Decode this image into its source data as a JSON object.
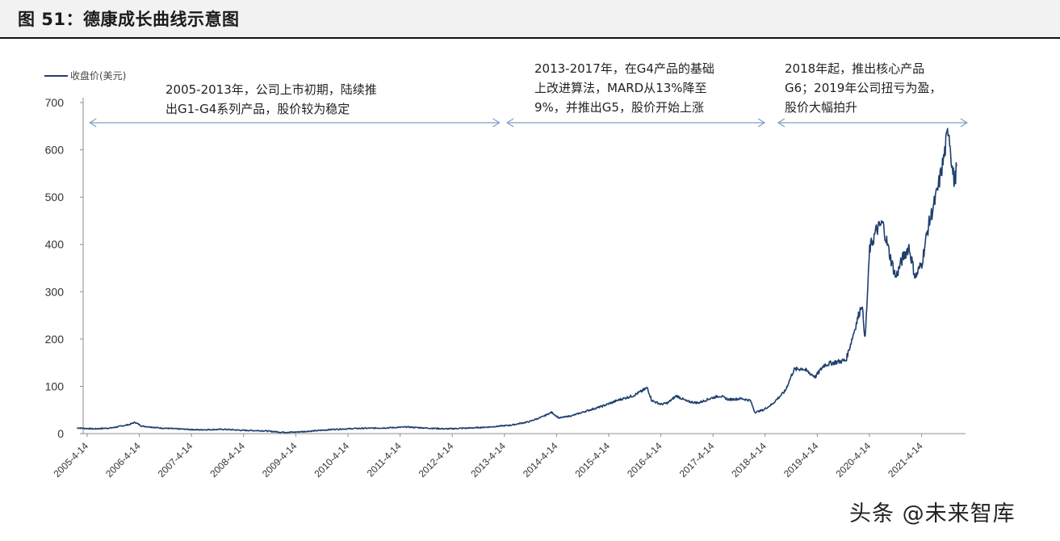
{
  "figure": {
    "title": "图 51：德康成长曲线示意图"
  },
  "chart_data": {
    "type": "line",
    "legend_label": "收盘价(美元)",
    "legend_placement": "top-left",
    "grid": false,
    "ylim": [
      0,
      700
    ],
    "yticks": [
      0,
      100,
      200,
      300,
      400,
      500,
      600,
      700
    ],
    "x_range": [
      "2005-02-01",
      "2021-12-15"
    ],
    "xtick_labels": [
      "2005-4-14",
      "2006-4-14",
      "2007-4-14",
      "2008-4-14",
      "2009-4-14",
      "2010-4-14",
      "2011-4-14",
      "2012-4-14",
      "2013-4-14",
      "2014-4-14",
      "2015-4-14",
      "2016-4-14",
      "2017-4-14",
      "2018-4-14",
      "2019-4-14",
      "2020-4-14",
      "2021-4-14"
    ],
    "line_color": "#1f3f6e",
    "series": [
      {
        "values": [
          [
            "2005-02-01",
            12
          ],
          [
            "2005-06-01",
            10
          ],
          [
            "2005-10-01",
            12
          ],
          [
            "2006-02-01",
            19
          ],
          [
            "2006-03-15",
            24
          ],
          [
            "2006-05-01",
            16
          ],
          [
            "2006-09-01",
            12
          ],
          [
            "2007-01-01",
            10
          ],
          [
            "2007-06-01",
            8
          ],
          [
            "2007-12-01",
            9
          ],
          [
            "2008-04-01",
            7
          ],
          [
            "2008-09-01",
            6
          ],
          [
            "2009-01-01",
            3
          ],
          [
            "2009-04-01",
            3
          ],
          [
            "2009-09-01",
            6
          ],
          [
            "2010-01-01",
            9
          ],
          [
            "2010-07-01",
            11
          ],
          [
            "2011-01-01",
            12
          ],
          [
            "2011-06-01",
            14
          ],
          [
            "2011-10-01",
            12
          ],
          [
            "2012-03-01",
            10
          ],
          [
            "2012-09-01",
            12
          ],
          [
            "2013-01-01",
            14
          ],
          [
            "2013-06-01",
            18
          ],
          [
            "2013-10-01",
            25
          ],
          [
            "2014-01-01",
            35
          ],
          [
            "2014-03-10",
            45
          ],
          [
            "2014-05-01",
            33
          ],
          [
            "2014-08-01",
            38
          ],
          [
            "2014-11-01",
            47
          ],
          [
            "2015-03-01",
            58
          ],
          [
            "2015-07-01",
            72
          ],
          [
            "2015-10-01",
            80
          ],
          [
            "2015-12-15",
            92
          ],
          [
            "2016-01-10",
            97
          ],
          [
            "2016-02-10",
            70
          ],
          [
            "2016-04-15",
            62
          ],
          [
            "2016-06-01",
            65
          ],
          [
            "2016-08-01",
            80
          ],
          [
            "2016-10-15",
            68
          ],
          [
            "2017-01-01",
            65
          ],
          [
            "2017-04-01",
            75
          ],
          [
            "2017-06-01",
            80
          ],
          [
            "2017-08-01",
            72
          ],
          [
            "2017-11-01",
            74
          ],
          [
            "2018-01-01",
            70
          ],
          [
            "2018-02-01",
            45
          ],
          [
            "2018-04-01",
            50
          ],
          [
            "2018-06-01",
            62
          ],
          [
            "2018-09-01",
            90
          ],
          [
            "2018-11-01",
            135
          ],
          [
            "2019-01-01",
            138
          ],
          [
            "2019-04-01",
            120
          ],
          [
            "2019-06-01",
            145
          ],
          [
            "2019-08-01",
            150
          ],
          [
            "2019-11-01",
            155
          ],
          [
            "2020-01-01",
            220
          ],
          [
            "2020-02-20",
            275
          ],
          [
            "2020-03-15",
            200
          ],
          [
            "2020-04-15",
            390
          ],
          [
            "2020-06-01",
            430
          ],
          [
            "2020-07-15",
            445
          ],
          [
            "2020-09-01",
            380
          ],
          [
            "2020-10-15",
            330
          ],
          [
            "2020-12-01",
            370
          ],
          [
            "2021-01-15",
            395
          ],
          [
            "2021-03-01",
            330
          ],
          [
            "2021-04-15",
            360
          ],
          [
            "2021-06-01",
            440
          ],
          [
            "2021-08-01",
            510
          ],
          [
            "2021-09-15",
            580
          ],
          [
            "2021-10-20",
            648
          ],
          [
            "2021-11-15",
            560
          ],
          [
            "2021-12-01",
            530
          ],
          [
            "2021-12-15",
            565
          ]
        ]
      }
    ],
    "annotations": [
      {
        "lines": [
          "2005-2013年，公司上市初期，陆续推",
          "出G1-G4系列产品，股价较为稳定"
        ],
        "span": [
          "2005-02-01",
          "2013-01-01"
        ]
      },
      {
        "lines": [
          "2013-2017年，在G4产品的基础",
          "上改进算法，MARD从13%降至",
          "9%，并推出G5，股价开始上涨"
        ],
        "span": [
          "2013-02-01",
          "2018-02-01"
        ]
      },
      {
        "lines": [
          "2018年起，推出核心产品",
          "G6；2019年公司扭亏为盈，",
          "股价大幅拍升"
        ],
        "span": [
          "2018-04-15",
          "2021-12-20"
        ]
      }
    ]
  },
  "watermark": "头条 @未来智库"
}
